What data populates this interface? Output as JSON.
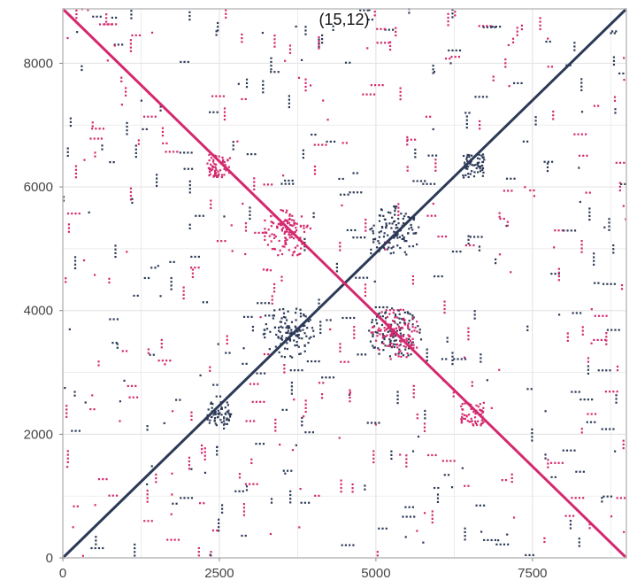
{
  "chart_data": {
    "type": "scatter",
    "title": "(15,12)",
    "xlabel": "",
    "ylabel": "",
    "xlim": [
      0,
      9000
    ],
    "ylim": [
      0,
      8880
    ],
    "x_ticks": [
      0,
      2500,
      5000,
      7500
    ],
    "x_tick_labels": [
      "0",
      "2500",
      "5000",
      "7500"
    ],
    "y_ticks": [
      0,
      2000,
      4000,
      6000,
      8000
    ],
    "y_tick_labels": [
      "0",
      "2000",
      "4000",
      "6000",
      "8000"
    ],
    "grid": true,
    "legend": "none",
    "colors": {
      "dark": "#2c3a57",
      "pink": "#d4296e",
      "grid": "#e5e5e5",
      "frame": "#bdbdbd"
    },
    "series": [
      {
        "color": "#2c3a57",
        "kind": "line",
        "x": [
          0,
          9000
        ],
        "y": [
          0,
          8880
        ]
      },
      {
        "color": "#d4296e",
        "kind": "line",
        "x": [
          0,
          9000
        ],
        "y": [
          8880,
          0
        ]
      },
      {
        "color": "#2c3a57",
        "kind": "cluster",
        "x": [
          2500,
          6550,
          3600,
          5300,
          5300
        ],
        "y": [
          2330,
          6340,
          3650,
          3620,
          5280
        ]
      },
      {
        "color": "#d4296e",
        "kind": "cluster",
        "x": [
          2500,
          6550,
          3600,
          5300
        ],
        "y": [
          6340,
          2330,
          5280,
          3620
        ]
      }
    ]
  }
}
